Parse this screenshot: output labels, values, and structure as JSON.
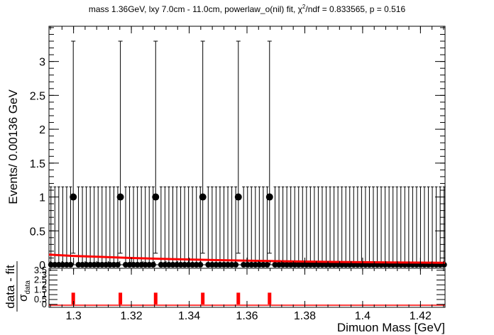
{
  "chart_data": [
    {
      "type": "scatter",
      "title": "mass 1.36GeV, lxy 7.0cm - 11.0cm, powerlaw_o(nil) fit, χ²/ndf = 0.833565, p = 0.516",
      "title_main": "mass 1.36GeV, lxy 7.0cm - 11.0cm, powerlaw_o(nil) fit, χ",
      "title_sup": "2",
      "title_rest": "/ndf = 0.833565, p = 0.516",
      "ylabel": "Events/ 0.00136 GeV",
      "xlim": [
        1.2915,
        1.4285
      ],
      "ylim": [
        0,
        3.52
      ],
      "bin_width": 0.00136,
      "yticks": [
        0,
        0.5,
        1,
        1.5,
        2,
        2.5,
        3
      ],
      "ytick_labels": [
        "0",
        "0.5",
        "1",
        "1.5",
        "2",
        "2.5",
        "3"
      ],
      "points_nonzero": [
        {
          "x": 1.2999,
          "y": 1,
          "err_low": 0.83,
          "err_high": 2.3
        },
        {
          "x": 1.3162,
          "y": 1,
          "err_low": 0.83,
          "err_high": 2.3
        },
        {
          "x": 1.3284,
          "y": 1,
          "err_low": 0.83,
          "err_high": 2.3
        },
        {
          "x": 1.3447,
          "y": 1,
          "err_low": 0.83,
          "err_high": 2.3
        },
        {
          "x": 1.357,
          "y": 1,
          "err_low": 0.83,
          "err_high": 2.3
        },
        {
          "x": 1.3678,
          "y": 1,
          "err_low": 0.83,
          "err_high": 2.3
        }
      ],
      "zero_points_err_high": 1.15,
      "fit_curve": {
        "name": "powerlaw_o(nil) fit",
        "color": "#ff0000",
        "x": [
          1.2915,
          1.3,
          1.31,
          1.32,
          1.33,
          1.34,
          1.35,
          1.36,
          1.37,
          1.38,
          1.39,
          1.4,
          1.41,
          1.42,
          1.4285
        ],
        "y": [
          0.15,
          0.13,
          0.115,
          0.1,
          0.088,
          0.077,
          0.068,
          0.06,
          0.053,
          0.047,
          0.042,
          0.038,
          0.034,
          0.031,
          0.028
        ]
      }
    },
    {
      "type": "bar",
      "ylabel_num": "data - fit",
      "ylabel_den": "σ",
      "ylabel_den_sub": "data",
      "xlabel": "Dimuon Mass [GeV]",
      "xlim": [
        1.2915,
        1.4285
      ],
      "ylim": [
        -0.3,
        3.7
      ],
      "xticks": [
        1.3,
        1.32,
        1.34,
        1.36,
        1.38,
        1.4,
        1.42
      ],
      "xtick_labels": [
        "1.3",
        "1.32",
        "1.34",
        "1.36",
        "1.38",
        "1.4",
        "1.42"
      ],
      "yticks": [
        0,
        0.5,
        1,
        1.5,
        2,
        2.5,
        3,
        3.5
      ],
      "ytick_labels": [
        "0",
        "0.5",
        "1",
        "1.5",
        "2",
        "2.5",
        "3",
        "3.5"
      ],
      "color": "#ff0000",
      "pulls": [
        {
          "x": 1.2999,
          "value": 1.2
        },
        {
          "x": 1.3162,
          "value": 1.2
        },
        {
          "x": 1.3284,
          "value": 1.2
        },
        {
          "x": 1.3447,
          "value": 1.2
        },
        {
          "x": 1.357,
          "value": 1.2
        },
        {
          "x": 1.3678,
          "value": 1.2
        }
      ],
      "baseline_pull": -0.08
    }
  ]
}
